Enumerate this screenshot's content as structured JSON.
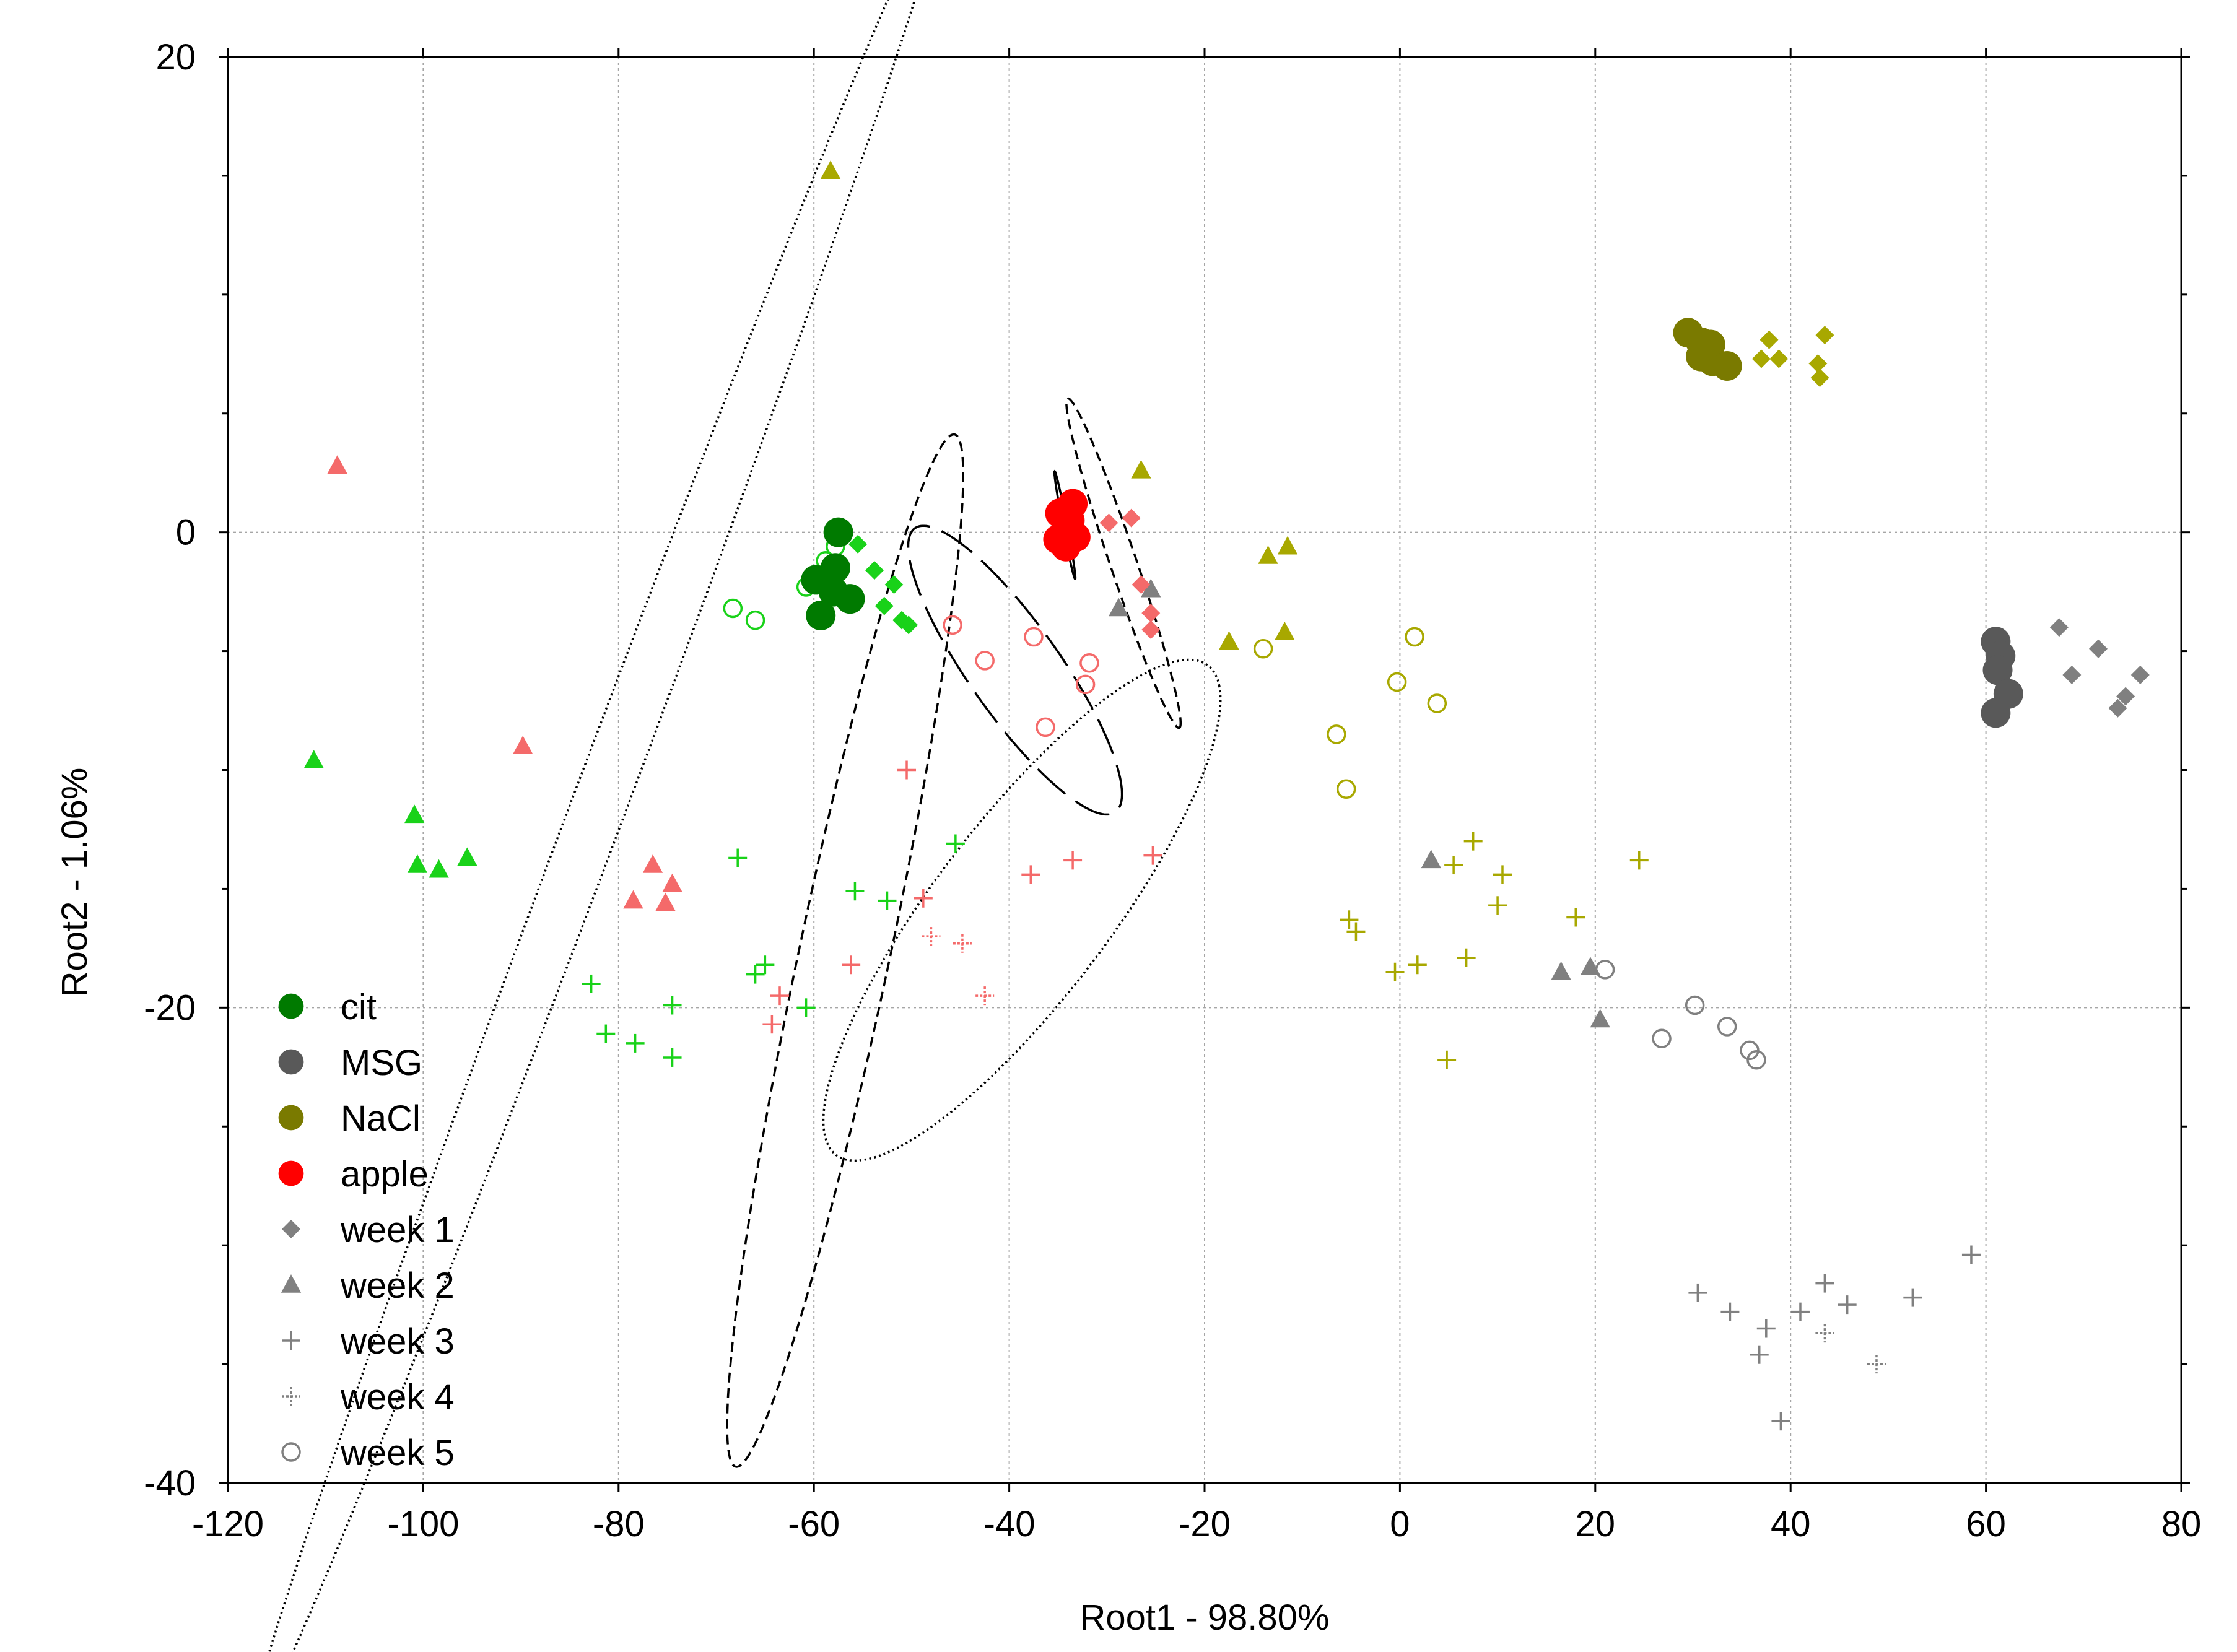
{
  "chart_data": {
    "type": "scatter",
    "title": "",
    "xlabel": "Root1 - 98.80%",
    "ylabel": "Root2 - 1.06%",
    "xlim": [
      -120,
      80
    ],
    "ylim": [
      -40,
      20
    ],
    "xticks": [
      -120,
      -100,
      -80,
      -60,
      -40,
      -20,
      0,
      20,
      40,
      60,
      80
    ],
    "yticks": [
      -40,
      -20,
      0,
      20
    ],
    "grid": true,
    "legend_position": "bottom-left",
    "colors": {
      "cit": "#007a00",
      "cit_light": "#19d219",
      "MSG": "#595959",
      "MSG_light": "#808080",
      "NaCl": "#7a7a00",
      "NaCl_light": "#a8a800",
      "apple": "#ff0000",
      "apple_light": "#f46a6a"
    },
    "legend": [
      {
        "label": "cit",
        "marker": "dot",
        "color": "#007a00"
      },
      {
        "label": "MSG",
        "marker": "dot",
        "color": "#595959"
      },
      {
        "label": "NaCl",
        "marker": "dot",
        "color": "#7a7a00"
      },
      {
        "label": "apple",
        "marker": "dot",
        "color": "#ff0000"
      },
      {
        "label": "week 1",
        "marker": "diamond",
        "color": "#808080"
      },
      {
        "label": "week 2",
        "marker": "triangle",
        "color": "#808080"
      },
      {
        "label": "week 3",
        "marker": "plus",
        "color": "#808080"
      },
      {
        "label": "week 4",
        "marker": "plus-dotted",
        "color": "#808080"
      },
      {
        "label": "week 5",
        "marker": "circle-open",
        "color": "#808080"
      }
    ],
    "series": [
      {
        "name": "cit week 0",
        "group": "cit",
        "marker": "dot",
        "color": "#007a00",
        "points": [
          [
            -57.5,
            0.0
          ],
          [
            -59.8,
            -2.0
          ],
          [
            -57.8,
            -1.5
          ],
          [
            -58.0,
            -2.5
          ],
          [
            -56.3,
            -2.8
          ],
          [
            -59.3,
            -3.5
          ]
        ]
      },
      {
        "name": "cit week 1",
        "group": "cit",
        "marker": "diamond",
        "color": "#19d219",
        "points": [
          [
            -55.5,
            -0.5
          ],
          [
            -53.8,
            -1.6
          ],
          [
            -51.8,
            -2.2
          ],
          [
            -52.8,
            -3.1
          ],
          [
            -51.0,
            -3.7
          ],
          [
            -50.3,
            -3.9
          ]
        ]
      },
      {
        "name": "cit week 2",
        "group": "cit",
        "marker": "triangle",
        "color": "#19d219",
        "points": [
          [
            -111.2,
            -9.6
          ],
          [
            -100.9,
            -11.9
          ],
          [
            -100.6,
            -14.0
          ],
          [
            -98.4,
            -14.2
          ],
          [
            -95.5,
            -13.7
          ]
        ]
      },
      {
        "name": "cit week 3",
        "group": "cit",
        "marker": "plus",
        "color": "#19d219",
        "points": [
          [
            -67.8,
            -13.7
          ],
          [
            -55.8,
            -15.1
          ],
          [
            -52.5,
            -15.5
          ],
          [
            -45.5,
            -13.1
          ],
          [
            -65.0,
            -18.2
          ],
          [
            -66.0,
            -18.6
          ],
          [
            -60.8,
            -20.0
          ],
          [
            -82.8,
            -19.0
          ],
          [
            -81.3,
            -21.1
          ],
          [
            -78.3,
            -21.5
          ],
          [
            -74.5,
            -19.9
          ],
          [
            -74.5,
            -22.1
          ]
        ]
      },
      {
        "name": "cit week 5",
        "group": "cit",
        "marker": "circle-open",
        "color": "#19d219",
        "points": [
          [
            -58.8,
            -1.2
          ],
          [
            -57.8,
            -0.6
          ],
          [
            -59.2,
            -1.8
          ],
          [
            -60.8,
            -2.3
          ],
          [
            -68.3,
            -3.2
          ],
          [
            -66.0,
            -3.7
          ]
        ]
      },
      {
        "name": "MSG week 0",
        "group": "MSG",
        "marker": "dot",
        "color": "#595959",
        "points": [
          [
            61.0,
            -4.6
          ],
          [
            61.5,
            -5.2
          ],
          [
            61.2,
            -5.8
          ],
          [
            62.3,
            -6.8
          ],
          [
            61.0,
            -7.6
          ]
        ]
      },
      {
        "name": "MSG week 1",
        "group": "MSG",
        "marker": "diamond",
        "color": "#808080",
        "points": [
          [
            67.5,
            -4.0
          ],
          [
            71.5,
            -4.9
          ],
          [
            68.8,
            -6.0
          ],
          [
            75.8,
            -6.0
          ],
          [
            74.3,
            -6.9
          ],
          [
            73.5,
            -7.4
          ]
        ]
      },
      {
        "name": "MSG week 2",
        "group": "MSG",
        "marker": "triangle",
        "color": "#808080",
        "points": [
          [
            -28.8,
            -3.2
          ],
          [
            -25.5,
            -2.4
          ],
          [
            3.2,
            -13.8
          ],
          [
            16.5,
            -18.5
          ],
          [
            19.5,
            -18.3
          ],
          [
            20.5,
            -20.5
          ]
        ]
      },
      {
        "name": "MSG week 3",
        "group": "MSG",
        "marker": "plus",
        "color": "#808080",
        "points": [
          [
            30.5,
            -32.0
          ],
          [
            33.8,
            -32.8
          ],
          [
            37.5,
            -33.5
          ],
          [
            41.0,
            -32.8
          ],
          [
            43.5,
            -31.6
          ],
          [
            45.8,
            -32.5
          ],
          [
            52.5,
            -32.2
          ],
          [
            58.5,
            -30.4
          ],
          [
            36.8,
            -34.6
          ],
          [
            39.0,
            -37.4
          ]
        ]
      },
      {
        "name": "MSG week 4",
        "group": "MSG",
        "marker": "plus-dotted",
        "color": "#808080",
        "points": [
          [
            43.5,
            -33.7
          ],
          [
            48.8,
            -35.0
          ]
        ]
      },
      {
        "name": "MSG week 5",
        "group": "MSG",
        "marker": "circle-open",
        "color": "#808080",
        "points": [
          [
            21.0,
            -18.4
          ],
          [
            30.2,
            -19.9
          ],
          [
            26.8,
            -21.3
          ],
          [
            33.5,
            -20.8
          ],
          [
            35.8,
            -21.8
          ],
          [
            36.5,
            -22.2
          ]
        ]
      },
      {
        "name": "NaCl week 0",
        "group": "NaCl",
        "marker": "dot",
        "color": "#7a7a00",
        "points": [
          [
            29.5,
            8.4
          ],
          [
            30.8,
            8.0
          ],
          [
            31.8,
            7.9
          ],
          [
            30.8,
            7.4
          ],
          [
            32.0,
            7.2
          ],
          [
            33.5,
            7.0
          ]
        ]
      },
      {
        "name": "NaCl week 1",
        "group": "NaCl",
        "marker": "diamond",
        "color": "#a8a800",
        "points": [
          [
            37.8,
            8.1
          ],
          [
            43.5,
            8.3
          ],
          [
            37.0,
            7.3
          ],
          [
            38.8,
            7.3
          ],
          [
            42.8,
            7.1
          ],
          [
            43.0,
            6.5
          ]
        ]
      },
      {
        "name": "NaCl week 2",
        "group": "NaCl",
        "marker": "triangle",
        "color": "#a8a800",
        "points": [
          [
            -58.3,
            15.2
          ],
          [
            -26.5,
            2.6
          ],
          [
            -13.5,
            -1.0
          ],
          [
            -11.5,
            -0.6
          ],
          [
            -17.5,
            -4.6
          ],
          [
            -11.8,
            -4.2
          ]
        ]
      },
      {
        "name": "NaCl week 3",
        "group": "NaCl",
        "marker": "plus",
        "color": "#a8a800",
        "points": [
          [
            7.5,
            -13.0
          ],
          [
            24.5,
            -13.8
          ],
          [
            5.5,
            -14.0
          ],
          [
            10.5,
            -14.4
          ],
          [
            10.0,
            -15.7
          ],
          [
            18.0,
            -16.2
          ],
          [
            -5.2,
            -16.3
          ],
          [
            -4.5,
            -16.8
          ],
          [
            1.8,
            -18.2
          ],
          [
            6.8,
            -17.9
          ],
          [
            -0.5,
            -18.5
          ],
          [
            4.8,
            -22.2
          ]
        ]
      },
      {
        "name": "NaCl week 5",
        "group": "NaCl",
        "marker": "circle-open",
        "color": "#a8a800",
        "points": [
          [
            1.5,
            -4.4
          ],
          [
            -14.0,
            -4.9
          ],
          [
            -0.3,
            -6.3
          ],
          [
            3.8,
            -7.2
          ],
          [
            -6.5,
            -8.5
          ],
          [
            -5.5,
            -10.8
          ]
        ]
      },
      {
        "name": "apple week 0",
        "group": "apple",
        "marker": "dot",
        "color": "#ff0000",
        "points": [
          [
            -33.5,
            1.2
          ],
          [
            -33.8,
            0.5
          ],
          [
            -34.8,
            0.8
          ],
          [
            -33.2,
            -0.2
          ],
          [
            -35.0,
            -0.3
          ],
          [
            -34.2,
            -0.6
          ]
        ]
      },
      {
        "name": "apple week 1",
        "group": "apple",
        "marker": "diamond",
        "color": "#f46a6a",
        "points": [
          [
            -29.8,
            0.4
          ],
          [
            -27.5,
            0.6
          ],
          [
            -26.5,
            -2.2
          ],
          [
            -25.5,
            -3.4
          ],
          [
            -25.5,
            -4.1
          ]
        ]
      },
      {
        "name": "apple week 2",
        "group": "apple",
        "marker": "triangle",
        "color": "#f46a6a",
        "points": [
          [
            -108.8,
            2.8
          ],
          [
            -89.8,
            -9.0
          ],
          [
            -76.5,
            -14.0
          ],
          [
            -74.5,
            -14.8
          ],
          [
            -78.5,
            -15.5
          ],
          [
            -75.2,
            -15.6
          ]
        ]
      },
      {
        "name": "apple week 3",
        "group": "apple",
        "marker": "plus",
        "color": "#f46a6a",
        "points": [
          [
            -50.5,
            -10.0
          ],
          [
            -25.3,
            -13.6
          ],
          [
            -33.5,
            -13.8
          ],
          [
            -37.8,
            -14.4
          ],
          [
            -48.8,
            -15.4
          ],
          [
            -56.2,
            -18.2
          ],
          [
            -64.3,
            -20.7
          ],
          [
            -63.5,
            -19.5
          ]
        ]
      },
      {
        "name": "apple week 4",
        "group": "apple",
        "marker": "plus-dotted",
        "color": "#f46a6a",
        "points": [
          [
            -48.0,
            -17.0
          ],
          [
            -44.8,
            -17.3
          ],
          [
            -42.5,
            -19.5
          ]
        ]
      },
      {
        "name": "apple week 5",
        "group": "apple",
        "marker": "circle-open",
        "color": "#f46a6a",
        "points": [
          [
            -45.8,
            -3.9
          ],
          [
            -37.5,
            -4.4
          ],
          [
            -42.5,
            -5.4
          ],
          [
            -31.8,
            -5.5
          ],
          [
            -32.2,
            -6.4
          ],
          [
            -36.3,
            -8.2
          ]
        ]
      }
    ],
    "ellipses": [
      {
        "name": "apple week 2 confidence ellipse",
        "style": "dotted",
        "cx": -82.3,
        "cy": -11.8,
        "rx": 52.4,
        "ry": 2.2,
        "angle_deg": 47.5
      },
      {
        "name": "apple week 3 confidence ellipse",
        "style": "dashed",
        "cx": -56.8,
        "cy": -17.6,
        "rx": 24.5,
        "ry": 4.2,
        "angle_deg": 62.0
      },
      {
        "name": "apple week 4 confidence ellipse",
        "style": "dotted",
        "cx": -38.7,
        "cy": -15.9,
        "rx": 22.3,
        "ry": 5.2,
        "angle_deg": 25.0
      },
      {
        "name": "apple week 5 confidence ellipse",
        "style": "long-dashed",
        "cx": -39.4,
        "cy": -5.8,
        "rx": 12.2,
        "ry": 2.8,
        "angle_deg": -27.0
      },
      {
        "name": "apple week 1 confidence ellipse",
        "style": "dashed",
        "cx": -28.3,
        "cy": -1.3,
        "rx": 9.0,
        "ry": 1.1,
        "angle_deg": -50.0
      },
      {
        "name": "apple week 0 confidence ellipse",
        "style": "solid",
        "cx": -34.3,
        "cy": 0.3,
        "rx": 2.5,
        "ry": 0.2,
        "angle_deg": -65.0
      }
    ]
  }
}
